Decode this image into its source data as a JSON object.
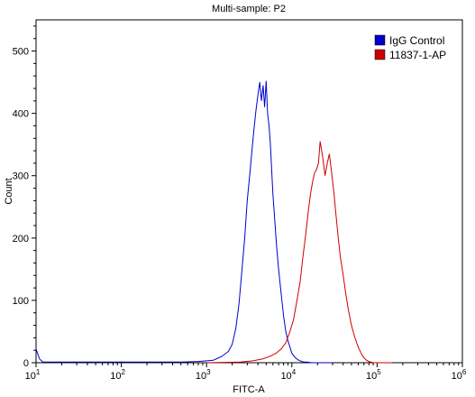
{
  "chart_data": {
    "type": "line",
    "title": "Multi-sample: P2",
    "xlabel": "FITC-A",
    "ylabel": "Count",
    "x_scale": "log",
    "xlim": [
      10,
      1000000
    ],
    "ylim": [
      0,
      550
    ],
    "x_ticks": [
      {
        "value": 10,
        "base": "10",
        "exp": "1"
      },
      {
        "value": 100,
        "base": "10",
        "exp": "2"
      },
      {
        "value": 1000,
        "base": "10",
        "exp": "3"
      },
      {
        "value": 10000,
        "base": "10",
        "exp": "4"
      },
      {
        "value": 100000,
        "base": "10",
        "exp": "5"
      },
      {
        "value": 1000000,
        "base": "10",
        "exp": "6"
      }
    ],
    "y_ticks": [
      "0",
      "100",
      "200",
      "300",
      "400",
      "500"
    ],
    "grid": false,
    "legend_position": "top-right",
    "series": [
      {
        "name": "IgG Control",
        "color": "#0000cc",
        "x": [
          10,
          11,
          12,
          500,
          800,
          1200,
          1500,
          1800,
          2000,
          2200,
          2400,
          2600,
          2800,
          3000,
          3200,
          3400,
          3600,
          3800,
          4000,
          4200,
          4400,
          4600,
          4800,
          5000,
          5200,
          5400,
          5600,
          5800,
          6000,
          6300,
          6600,
          7000,
          7500,
          8000,
          8500,
          9000,
          9500,
          10000,
          11000,
          12000,
          13000,
          14000,
          15000,
          17000,
          20000,
          30000
        ],
        "y": [
          22,
          6,
          1,
          1,
          2,
          4,
          10,
          18,
          30,
          55,
          95,
          150,
          200,
          260,
          300,
          340,
          375,
          405,
          430,
          450,
          420,
          445,
          410,
          452,
          400,
          380,
          350,
          310,
          270,
          230,
          190,
          150,
          110,
          75,
          50,
          35,
          25,
          15,
          8,
          4,
          2,
          1,
          1,
          0,
          0,
          0
        ]
      },
      {
        "name": "11837-1-AP",
        "color": "#cc0000",
        "x": [
          1000,
          2500,
          3500,
          4500,
          5500,
          6500,
          7500,
          8500,
          9500,
          10500,
          11500,
          12500,
          13500,
          14500,
          15500,
          16500,
          17500,
          18500,
          19500,
          20500,
          21500,
          23000,
          24500,
          26000,
          27500,
          29000,
          31000,
          33000,
          35000,
          37000,
          40000,
          43000,
          46000,
          50000,
          55000,
          60000,
          65000,
          70000,
          75000,
          80000,
          85000,
          90000,
          100000,
          150000
        ],
        "y": [
          0,
          1,
          3,
          6,
          10,
          15,
          22,
          32,
          50,
          70,
          100,
          130,
          170,
          205,
          240,
          270,
          290,
          305,
          310,
          320,
          355,
          330,
          300,
          320,
          335,
          310,
          275,
          235,
          200,
          170,
          140,
          110,
          85,
          60,
          40,
          25,
          15,
          8,
          4,
          2,
          1,
          0,
          0,
          0
        ]
      }
    ]
  }
}
